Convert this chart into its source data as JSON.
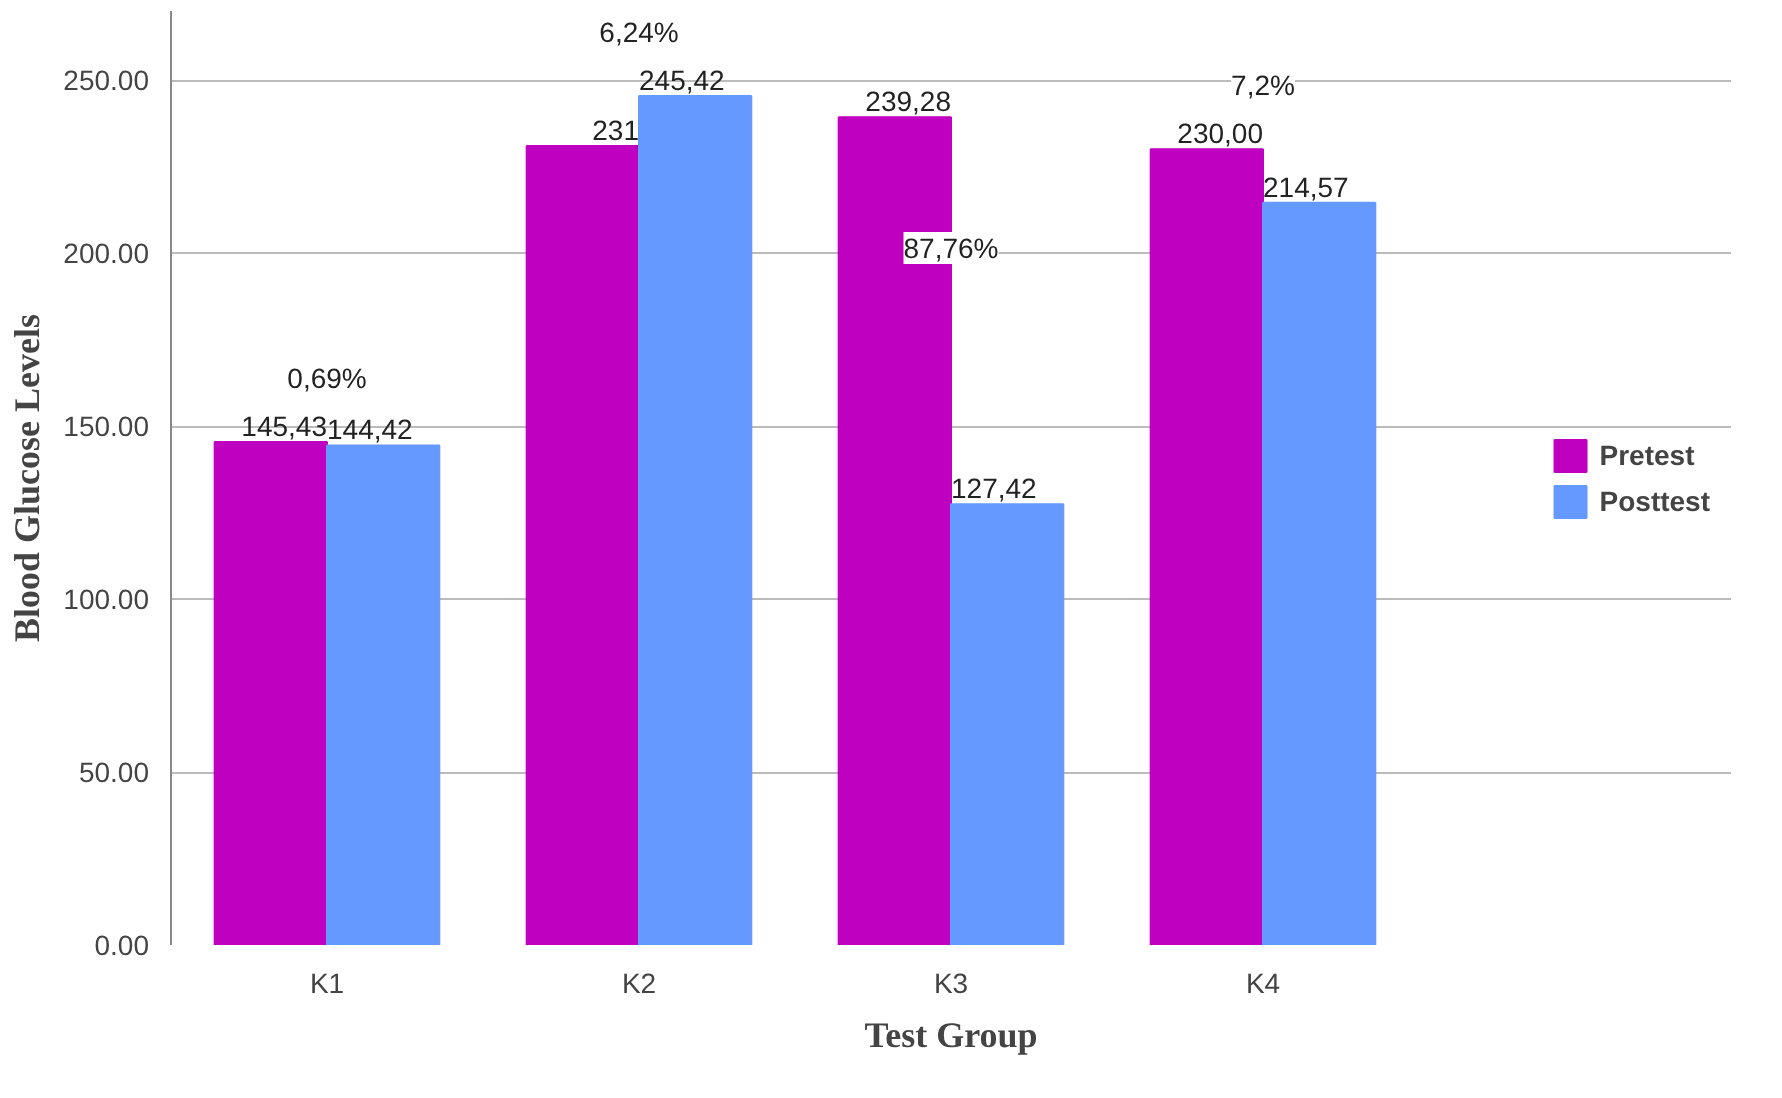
{
  "chart_data": {
    "type": "bar",
    "xlabel": "Test Group",
    "ylabel": "Blood Glucose Levels",
    "categories": [
      "K1",
      "K2",
      "K3",
      "K4"
    ],
    "series": [
      {
        "name": "Pretest",
        "color": "#c000c0",
        "values": [
          145.43,
          231,
          239.28,
          230.0
        ],
        "value_labels": [
          "145,43",
          "231",
          "239,28",
          "230,00"
        ]
      },
      {
        "name": "Posttest",
        "color": "#6699ff",
        "values": [
          144.42,
          245.42,
          127.42,
          214.57
        ],
        "value_labels": [
          "144,42",
          "245,42",
          "127,42",
          "214,57"
        ]
      }
    ],
    "ylim": [
      0,
      270
    ],
    "yticks": [
      {
        "value": 0,
        "label": "0.00"
      },
      {
        "value": 50,
        "label": "50.00"
      },
      {
        "value": 100,
        "label": "100.00"
      },
      {
        "value": 150,
        "label": "150.00"
      },
      {
        "value": 200,
        "label": "200.00"
      },
      {
        "value": 250,
        "label": "250.00"
      }
    ],
    "annotations": [
      {
        "text": "0,69%",
        "x": "K1",
        "y": 145.43
      },
      {
        "text": "6,24%",
        "x": "K2",
        "y": 245.42
      },
      {
        "text": "87,76%",
        "x": "K3",
        "y": 183
      },
      {
        "text": "7,2%",
        "x": "K4",
        "y": 230.0
      }
    ],
    "grid": "y",
    "legend": "right"
  }
}
